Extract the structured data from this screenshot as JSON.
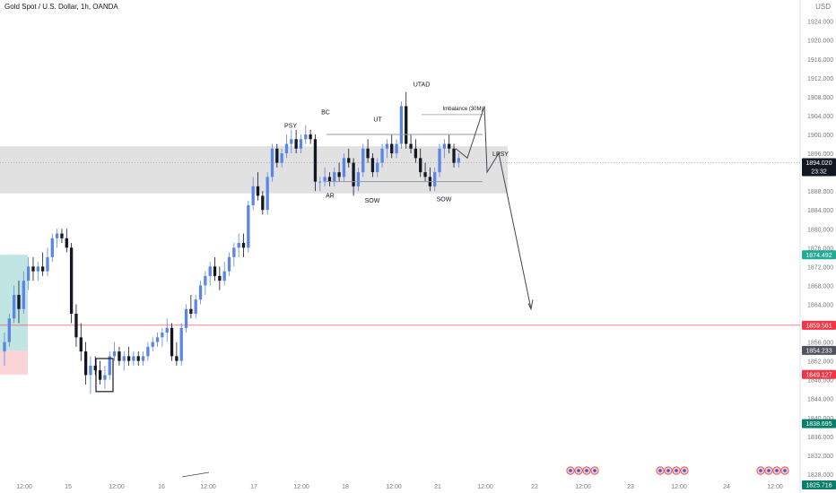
{
  "header": {
    "symbol": "Gold Spot / U.S. Dollar, 1h, OANDA",
    "currency": "USD"
  },
  "chart_data": {
    "type": "candlestick",
    "ylim": [
      1822,
      1928
    ],
    "price_ticks": [
      1824,
      1828,
      1832,
      1836,
      1840,
      1844,
      1848,
      1852,
      1856,
      1860,
      1864,
      1868,
      1872,
      1876,
      1880,
      1884,
      1888,
      1892,
      1896,
      1900,
      1904,
      1908,
      1912,
      1916,
      1920,
      1924
    ],
    "time_labels": [
      "12:00",
      "15",
      "12:00",
      "16",
      "12:00",
      "17",
      "12:00",
      "18",
      "12:00",
      "21",
      "12:00",
      "22",
      "12:00",
      "23",
      "12:00",
      "24",
      "12:00"
    ],
    "candles": [
      [
        1854,
        1858,
        1851,
        1856
      ],
      [
        1856,
        1862,
        1855,
        1861
      ],
      [
        1861,
        1868,
        1860,
        1866
      ],
      [
        1866,
        1869,
        1860,
        1863
      ],
      [
        1863,
        1871,
        1862,
        1869
      ],
      [
        1869,
        1874,
        1867,
        1872
      ],
      [
        1872,
        1874,
        1869,
        1871
      ],
      [
        1871,
        1873,
        1869,
        1872
      ],
      [
        1872,
        1875,
        1870,
        1871
      ],
      [
        1871,
        1876,
        1870,
        1874
      ],
      [
        1874,
        1879,
        1873,
        1878
      ],
      [
        1878,
        1880,
        1876,
        1879
      ],
      [
        1879,
        1880,
        1877,
        1878
      ],
      [
        1878,
        1880,
        1875,
        1876
      ],
      [
        1876,
        1877,
        1860,
        1862
      ],
      [
        1862,
        1864,
        1855,
        1857
      ],
      [
        1857,
        1860,
        1852,
        1854
      ],
      [
        1854,
        1856,
        1847,
        1849
      ],
      [
        1849,
        1853,
        1845,
        1851
      ],
      [
        1851,
        1853,
        1849,
        1850
      ],
      [
        1850,
        1852,
        1847,
        1848
      ],
      [
        1848,
        1851,
        1846,
        1849
      ],
      [
        1849,
        1854,
        1848,
        1853
      ],
      [
        1853,
        1856,
        1852,
        1854
      ],
      [
        1854,
        1855,
        1851,
        1852
      ],
      [
        1852,
        1854,
        1850,
        1853
      ],
      [
        1853,
        1855,
        1851,
        1852
      ],
      [
        1852,
        1854,
        1851,
        1853
      ],
      [
        1853,
        1854,
        1851,
        1852
      ],
      [
        1852,
        1854,
        1851,
        1853
      ],
      [
        1853,
        1856,
        1852,
        1855
      ],
      [
        1855,
        1857,
        1854,
        1856
      ],
      [
        1856,
        1858,
        1855,
        1857
      ],
      [
        1857,
        1859,
        1855,
        1858
      ],
      [
        1858,
        1861,
        1856,
        1859
      ],
      [
        1859,
        1860,
        1852,
        1853
      ],
      [
        1853,
        1856,
        1851,
        1852
      ],
      [
        1852,
        1860,
        1851,
        1859
      ],
      [
        1859,
        1864,
        1858,
        1863
      ],
      [
        1863,
        1866,
        1861,
        1862
      ],
      [
        1862,
        1866,
        1861,
        1865
      ],
      [
        1865,
        1869,
        1864,
        1868
      ],
      [
        1868,
        1871,
        1866,
        1870
      ],
      [
        1870,
        1873,
        1868,
        1872
      ],
      [
        1872,
        1874,
        1869,
        1870
      ],
      [
        1870,
        1872,
        1867,
        1869
      ],
      [
        1869,
        1873,
        1868,
        1871
      ],
      [
        1871,
        1875,
        1870,
        1874
      ],
      [
        1874,
        1877,
        1872,
        1876
      ],
      [
        1876,
        1879,
        1874,
        1877
      ],
      [
        1877,
        1879,
        1874,
        1876
      ],
      [
        1876,
        1886,
        1875,
        1885
      ],
      [
        1885,
        1891,
        1884,
        1889
      ],
      [
        1889,
        1892,
        1886,
        1887
      ],
      [
        1887,
        1888,
        1883,
        1884
      ],
      [
        1884,
        1892,
        1883,
        1891
      ],
      [
        1891,
        1898,
        1890,
        1897
      ],
      [
        1897,
        1898,
        1893,
        1894
      ],
      [
        1894,
        1897,
        1893,
        1896
      ],
      [
        1896,
        1900,
        1895,
        1898
      ],
      [
        1898,
        1901,
        1896,
        1899
      ],
      [
        1899,
        1901,
        1896,
        1897
      ],
      [
        1897,
        1900,
        1896,
        1899
      ],
      [
        1899,
        1902,
        1898,
        1900
      ],
      [
        1900,
        1901,
        1898,
        1899
      ],
      [
        1899,
        1900,
        1888,
        1890
      ],
      [
        1890,
        1891,
        1888,
        1890
      ],
      [
        1890,
        1893,
        1889,
        1891
      ],
      [
        1891,
        1892,
        1889,
        1890
      ],
      [
        1890,
        1893,
        1889,
        1892
      ],
      [
        1892,
        1894,
        1890,
        1891
      ],
      [
        1891,
        1896,
        1890,
        1895
      ],
      [
        1895,
        1897,
        1893,
        1894
      ],
      [
        1894,
        1895,
        1887,
        1889
      ],
      [
        1889,
        1893,
        1888,
        1892
      ],
      [
        1892,
        1898,
        1891,
        1897
      ],
      [
        1897,
        1899,
        1894,
        1895
      ],
      [
        1895,
        1896,
        1891,
        1892
      ],
      [
        1892,
        1895,
        1891,
        1894
      ],
      [
        1894,
        1898,
        1893,
        1897
      ],
      [
        1897,
        1899,
        1895,
        1898
      ],
      [
        1898,
        1900,
        1895,
        1896
      ],
      [
        1896,
        1899,
        1895,
        1898
      ],
      [
        1898,
        1907,
        1897,
        1906
      ],
      [
        1906,
        1909,
        1897,
        1898
      ],
      [
        1898,
        1900,
        1896,
        1897
      ],
      [
        1897,
        1899,
        1894,
        1895
      ],
      [
        1895,
        1897,
        1891,
        1892
      ],
      [
        1892,
        1894,
        1890,
        1891
      ],
      [
        1891,
        1893,
        1888,
        1889
      ],
      [
        1889,
        1893,
        1888,
        1892
      ],
      [
        1892,
        1898,
        1891,
        1897
      ],
      [
        1897,
        1899,
        1895,
        1898
      ],
      [
        1898,
        1900,
        1896,
        1897
      ],
      [
        1897,
        1898,
        1893,
        1894
      ],
      [
        1894,
        1896,
        1893,
        1895
      ]
    ],
    "annotations": [
      "PSY",
      "BC",
      "UT",
      "UTAD",
      "Imbalance (30M)",
      "AR",
      "SOW",
      "SOW",
      "LPSY"
    ],
    "price_labels": [
      {
        "price": 1894.02,
        "text": "1894.020",
        "sub": "23:32",
        "color": "#131722"
      },
      {
        "price": 1874.492,
        "text": "1874.492",
        "color": "#22ab94"
      },
      {
        "price": 1859.561,
        "text": "1859.561",
        "color": "#f23645"
      },
      {
        "price": 1854.233,
        "text": "1854.233",
        "color": "#50535e"
      },
      {
        "price": 1849.127,
        "text": "1849.127",
        "color": "#f23645"
      },
      {
        "price": 1838.695,
        "text": "1838.695",
        "color": "#0a7e6a"
      },
      {
        "price": 1825.716,
        "text": "1825.716",
        "color": "#0a7e6a"
      }
    ],
    "colors": {
      "up": "#5b86e5",
      "down": "#131722",
      "zone": "#d9d9d9",
      "support_line": "#f23645"
    }
  }
}
